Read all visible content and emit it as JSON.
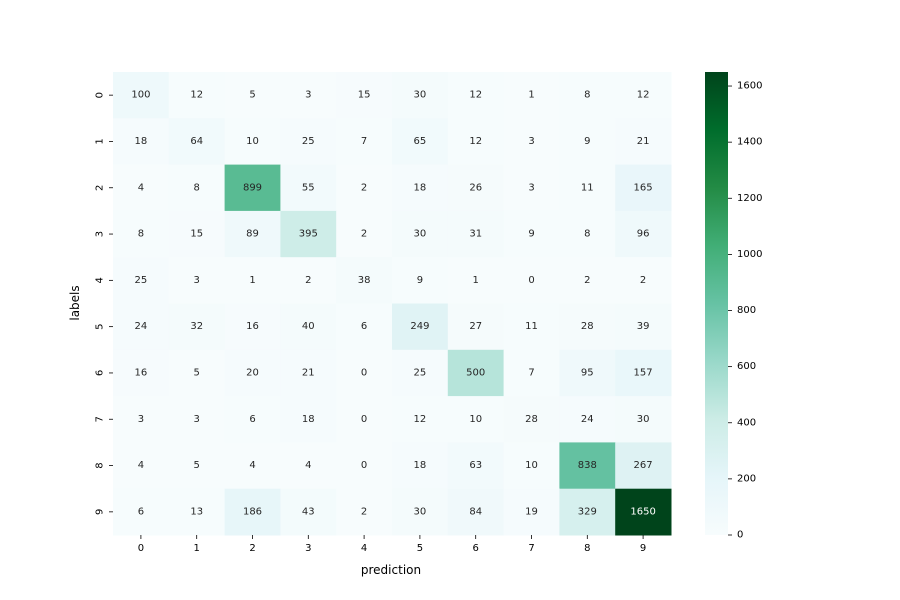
{
  "chart_data": {
    "type": "heatmap",
    "title": "",
    "xlabel": "prediction",
    "ylabel": "labels",
    "x_categories": [
      "0",
      "1",
      "2",
      "3",
      "4",
      "5",
      "6",
      "7",
      "8",
      "9"
    ],
    "y_categories": [
      "0",
      "1",
      "2",
      "3",
      "4",
      "5",
      "6",
      "7",
      "8",
      "9"
    ],
    "values": [
      [
        100,
        12,
        5,
        3,
        15,
        30,
        12,
        1,
        8,
        12
      ],
      [
        18,
        64,
        10,
        25,
        7,
        65,
        12,
        3,
        9,
        21
      ],
      [
        4,
        8,
        899,
        55,
        2,
        18,
        26,
        3,
        11,
        165
      ],
      [
        8,
        15,
        89,
        395,
        2,
        30,
        31,
        9,
        8,
        96
      ],
      [
        25,
        3,
        1,
        2,
        38,
        9,
        1,
        0,
        2,
        2
      ],
      [
        24,
        32,
        16,
        40,
        6,
        249,
        27,
        11,
        28,
        39
      ],
      [
        16,
        5,
        20,
        21,
        0,
        25,
        500,
        7,
        95,
        157
      ],
      [
        3,
        3,
        6,
        18,
        0,
        12,
        10,
        28,
        24,
        30
      ],
      [
        4,
        5,
        4,
        4,
        0,
        18,
        63,
        10,
        838,
        267
      ],
      [
        6,
        13,
        186,
        43,
        2,
        30,
        84,
        19,
        329,
        1650
      ]
    ],
    "colormap": "BuGn",
    "vmin": 0,
    "vmax": 1650,
    "colorbar_ticks": [
      0,
      200,
      400,
      600,
      800,
      1000,
      1200,
      1400,
      1600
    ],
    "colorbar_tick_labels": [
      "0",
      "200",
      "400",
      "600",
      "800",
      "1000",
      "1200",
      "1400",
      "1600"
    ],
    "annotated": true
  }
}
